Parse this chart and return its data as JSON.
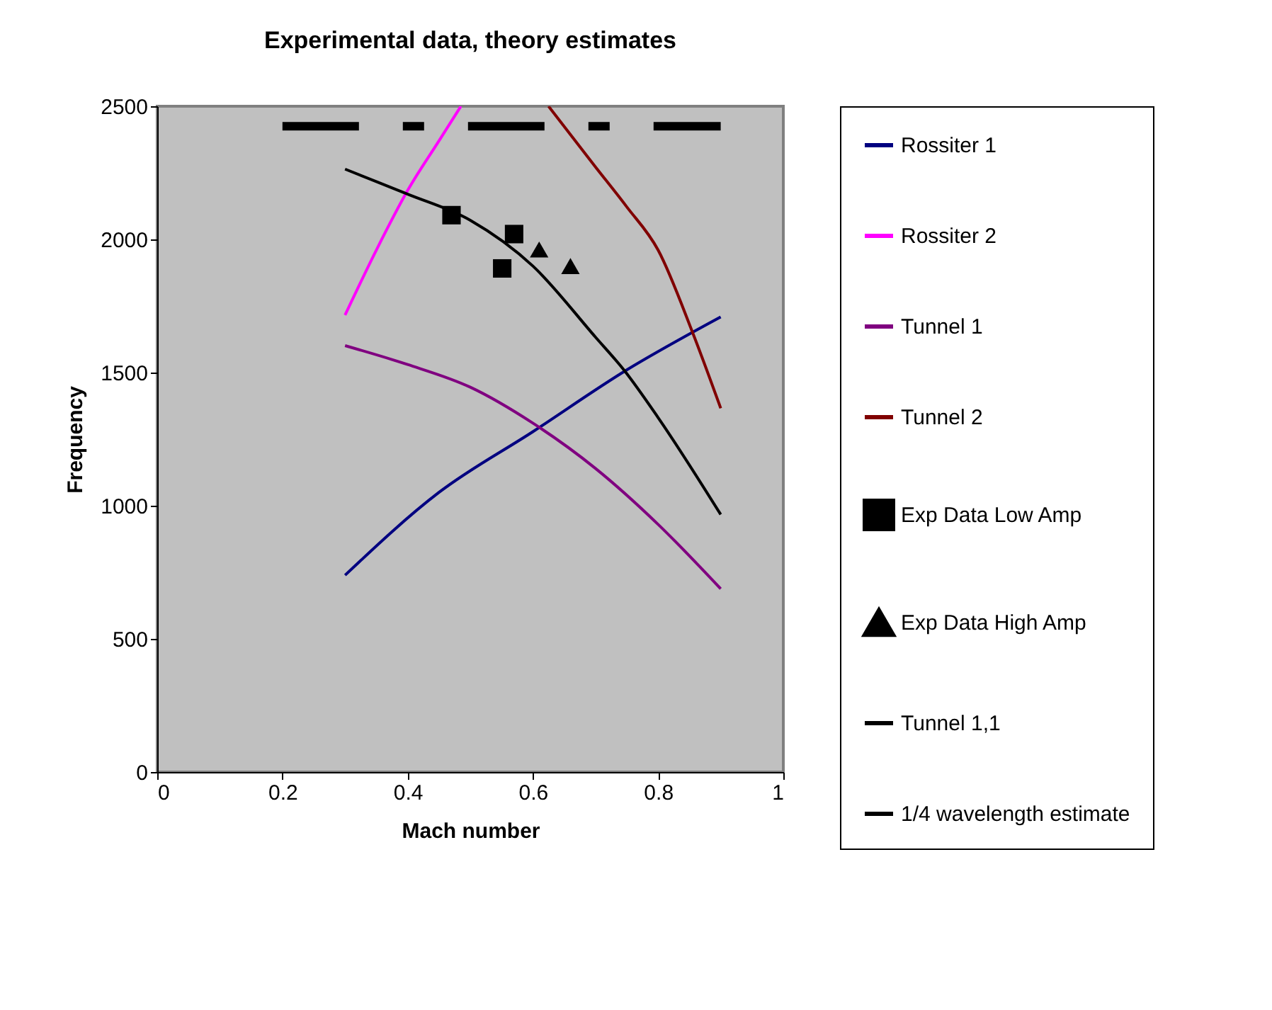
{
  "chart_data": {
    "type": "line",
    "title": "Experimental data, theory estimates",
    "xlabel": "Mach number",
    "ylabel": "Frequency",
    "xlim": [
      0,
      1
    ],
    "xticks": [
      0,
      0.2,
      0.4,
      0.6,
      0.8,
      1
    ],
    "ylim": [
      0,
      2500
    ],
    "yticks": [
      0,
      500,
      1000,
      1500,
      2000,
      2500
    ],
    "grid": false,
    "legend": "right",
    "series": [
      {
        "name": "Rossiter 1",
        "color": "#000080",
        "type": "line",
        "x": [
          0.3,
          0.45,
          0.6,
          0.75,
          0.9
        ],
        "values": [
          739,
          1050,
          1278,
          1510,
          1709
        ]
      },
      {
        "name": "Rossiter 2",
        "color": "#ff00ff",
        "type": "line",
        "x": [
          0.3,
          0.35,
          0.4,
          0.45,
          0.485
        ],
        "values": [
          1716,
          1960,
          2184,
          2370,
          2500
        ]
      },
      {
        "name": "Tunnel 1",
        "color": "#800080",
        "type": "line",
        "x": [
          0.3,
          0.4,
          0.5,
          0.6,
          0.7,
          0.8,
          0.9
        ],
        "values": [
          1601,
          1530,
          1445,
          1310,
          1140,
          930,
          688
        ]
      },
      {
        "name": "Tunnel 2",
        "color": "#800000",
        "type": "line",
        "x": [
          0.625,
          0.7,
          0.75,
          0.8,
          0.855,
          0.9
        ],
        "values": [
          2500,
          2272,
          2122,
          1960,
          1651,
          1366
        ]
      },
      {
        "name": "Exp Data Low Amp",
        "color": "#000000",
        "type": "scatter",
        "marker": "square",
        "x": [
          0.47,
          0.57,
          0.551
        ],
        "values": [
          2091,
          2020,
          1891
        ]
      },
      {
        "name": "Exp Data High Amp",
        "color": "#000000",
        "type": "scatter",
        "marker": "triangle",
        "x": [
          0.61,
          0.66
        ],
        "values": [
          1962,
          1900
        ]
      },
      {
        "name": "Tunnel 1,1",
        "color": "#000000",
        "type": "line",
        "x": [
          0.3,
          0.4,
          0.5,
          0.6,
          0.7,
          0.746,
          0.8,
          0.9
        ],
        "values": [
          2264,
          2170,
          2072,
          1900,
          1633,
          1508,
          1331,
          967
        ]
      },
      {
        "name": "1/4 wavelength estimate",
        "color": "#000000",
        "type": "line",
        "line_style": "dashed",
        "x": [
          0.2,
          0.9
        ],
        "values": [
          2425,
          2425
        ]
      }
    ]
  }
}
